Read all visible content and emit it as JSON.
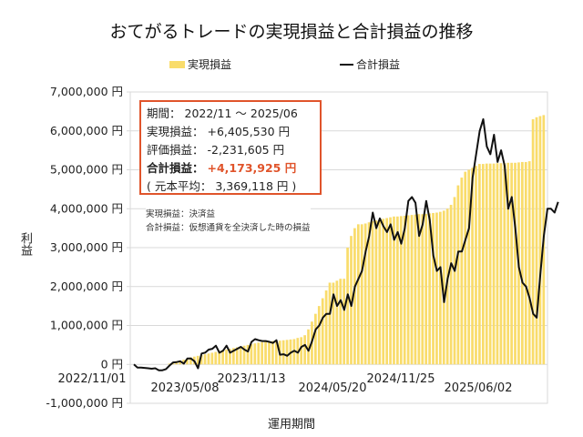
{
  "title": "おてがるトレードの実現損益と合計損益の推移",
  "legend": {
    "bar_label": "実現損益",
    "line_label": "合計損益"
  },
  "axes": {
    "ylabel": "利益",
    "xlabel": "運用期間",
    "yticks": [
      "7,000,000 円",
      "6,000,000 円",
      "5,000,000 円",
      "4,000,000 円",
      "3,000,000 円",
      "2,000,000 円",
      "1,000,000 円",
      "0 円",
      "-1,000,000 円"
    ],
    "xticks": [
      "2022/11/01",
      "2023/05/08",
      "2023/11/13",
      "2024/05/20",
      "2024/11/25",
      "2025/06/02"
    ]
  },
  "infobox": {
    "period_label": "期間：",
    "period_value": "2022/11 ～ 2025/06",
    "realized_label": "実現損益：",
    "realized_value": "+6,405,530 円",
    "unrealized_label": "評価損益：",
    "unrealized_value": "-2,231,605 円",
    "total_label": "合計損益：",
    "total_value": "+4,173,925 円",
    "principal_text": "( 元本平均： 3,369,118 円 )"
  },
  "notes": {
    "line1": "実現損益：決済益",
    "line2": "合計損益：仮想通貨を全決済した時の損益"
  },
  "colors": {
    "bar": "#f9dc6b",
    "line": "#111111",
    "accent": "#e0542b",
    "grid": "#d9d9d9"
  },
  "chart_data": {
    "type": "bar+line",
    "title": "おてがるトレードの実現損益と合計損益の推移",
    "xlabel": "運用期間",
    "ylabel": "利益",
    "ylim": [
      -1000000,
      7000000
    ],
    "grid": true,
    "legend_position": "top",
    "x_tick_labels": [
      "2022/11/01",
      "2023/05/08",
      "2023/11/13",
      "2024/05/20",
      "2024/11/25",
      "2025/06/02"
    ],
    "x_start": "2022/11/01",
    "x_end": "2025/06",
    "interval": "weekly",
    "series": [
      {
        "name": "実現損益",
        "type": "bar",
        "values": [
          0,
          0,
          0,
          0,
          0,
          0,
          0,
          0,
          0,
          0,
          20000,
          50000,
          80000,
          100000,
          120000,
          150000,
          180000,
          200000,
          220000,
          240000,
          260000,
          280000,
          300000,
          320000,
          340000,
          360000,
          380000,
          400000,
          420000,
          440000,
          460000,
          480000,
          500000,
          520000,
          540000,
          560000,
          570000,
          580000,
          590000,
          600000,
          600000,
          610000,
          620000,
          630000,
          640000,
          650000,
          680000,
          700000,
          750000,
          900000,
          1100000,
          1300000,
          1500000,
          1700000,
          1900000,
          2100000,
          2100000,
          2150000,
          2200000,
          2200000,
          3000000,
          3300000,
          3500000,
          3600000,
          3600000,
          3620000,
          3650000,
          3680000,
          3700000,
          3720000,
          3740000,
          3760000,
          3780000,
          3800000,
          3800000,
          3810000,
          3820000,
          3830000,
          3840000,
          3850000,
          3860000,
          3860000,
          3870000,
          3880000,
          3890000,
          3900000,
          3920000,
          3950000,
          4000000,
          4100000,
          4300000,
          4600000,
          4800000,
          4950000,
          5000000,
          5050000,
          5100000,
          5150000,
          5150000,
          5160000,
          5160000,
          5160000,
          5170000,
          5170000,
          5170000,
          5180000,
          5180000,
          5180000,
          5190000,
          5200000,
          5200000,
          5220000,
          6300000,
          6350000,
          6380000,
          6405530
        ]
      },
      {
        "name": "合計損益",
        "type": "line",
        "values": [
          0,
          -80000,
          -80000,
          -90000,
          -100000,
          -110000,
          -100000,
          -150000,
          -150000,
          -120000,
          -30000,
          50000,
          60000,
          80000,
          20000,
          150000,
          150000,
          80000,
          -100000,
          280000,
          300000,
          380000,
          400000,
          480000,
          300000,
          350000,
          480000,
          300000,
          350000,
          400000,
          450000,
          380000,
          330000,
          580000,
          650000,
          620000,
          600000,
          600000,
          580000,
          550000,
          620000,
          250000,
          260000,
          220000,
          300000,
          350000,
          300000,
          450000,
          500000,
          350000,
          600000,
          900000,
          1000000,
          1200000,
          1300000,
          1300000,
          1800000,
          1500000,
          1650000,
          1400000,
          1800000,
          1500000,
          2000000,
          2200000,
          2400000,
          2900000,
          3300000,
          3900000,
          3500000,
          3750000,
          3550000,
          3400000,
          3600000,
          3200000,
          3400000,
          3100000,
          3500000,
          4200000,
          4300000,
          4150000,
          3300000,
          3600000,
          4200000,
          3700000,
          2800000,
          2400000,
          2500000,
          1600000,
          2200000,
          2600000,
          2400000,
          2900000,
          2900000,
          3200000,
          3500000,
          4800000,
          5400000,
          6000000,
          6300000,
          5600000,
          5400000,
          5900000,
          5200000,
          5500000,
          5100000,
          4000000,
          4300000,
          3500000,
          2500000,
          2100000,
          2000000,
          1700000,
          1300000,
          1200000,
          2300000,
          3300000,
          4000000,
          4000000,
          3900000,
          4173925
        ]
      }
    ]
  }
}
